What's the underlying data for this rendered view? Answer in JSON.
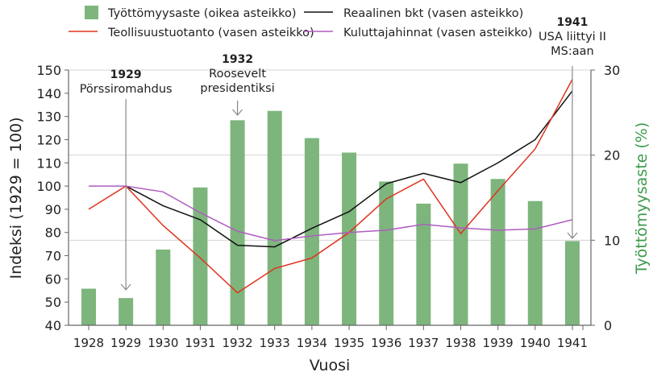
{
  "chart_data": {
    "type": "bar+line",
    "title": "",
    "xlabel": "Vuosi",
    "ylabel_left": "Indeksi (1929 = 100)",
    "ylabel_right": "Työttömyysaste (%)",
    "ylim_left": [
      40,
      150
    ],
    "yticks_left": [
      40,
      50,
      60,
      70,
      80,
      90,
      100,
      110,
      120,
      130,
      140,
      150
    ],
    "ylim_right": [
      0,
      30
    ],
    "yticks_right": [
      0,
      10,
      20,
      30
    ],
    "categories": [
      "1928",
      "1929",
      "1930",
      "1931",
      "1932",
      "1933",
      "1934",
      "1935",
      "1936",
      "1937",
      "1938",
      "1939",
      "1940",
      "1941"
    ],
    "series": [
      {
        "name": "Työttömyysaste (oikea asteikko)",
        "type": "bar",
        "axis": "right",
        "color": "#7db57d",
        "values": [
          4.3,
          3.2,
          8.9,
          16.2,
          24.1,
          25.2,
          22.0,
          20.3,
          16.9,
          14.3,
          19.0,
          17.2,
          14.6,
          9.9
        ]
      },
      {
        "name": "Reaalinen bkt (vasen asteikko)",
        "type": "line",
        "axis": "left",
        "color": "#111111",
        "values": [
          null,
          100,
          91.5,
          85.5,
          74.5,
          73.8,
          81.8,
          89,
          101,
          105.5,
          101.5,
          110,
          120,
          141
        ]
      },
      {
        "name": "Teollisuustuotanto (vasen asteikko)",
        "type": "line",
        "axis": "left",
        "color": "#e0331f",
        "values": [
          90,
          100,
          83,
          69,
          54,
          64.5,
          69,
          80,
          94.5,
          103,
          79.5,
          98,
          116,
          146
        ]
      },
      {
        "name": "Kuluttajahinnat (vasen asteikko)",
        "type": "line",
        "axis": "left",
        "color": "#b05cc0",
        "values": [
          100,
          100,
          97.5,
          88.5,
          80.5,
          76.5,
          78.5,
          80,
          81,
          83.5,
          82,
          81,
          81.5,
          85.5
        ]
      }
    ],
    "annotations": [
      {
        "year": "1929",
        "title": "1929",
        "text": [
          "Pörssiromahdus"
        ]
      },
      {
        "year": "1932",
        "title": "1932",
        "text": [
          "Roosevelt",
          "presidentiksi"
        ]
      },
      {
        "year": "1941",
        "title": "1941",
        "text": [
          "USA liittyi II",
          "MS:aan"
        ]
      }
    ],
    "grid": "horizontal at right-axis 10, 20, 30",
    "legend_position": "top"
  }
}
